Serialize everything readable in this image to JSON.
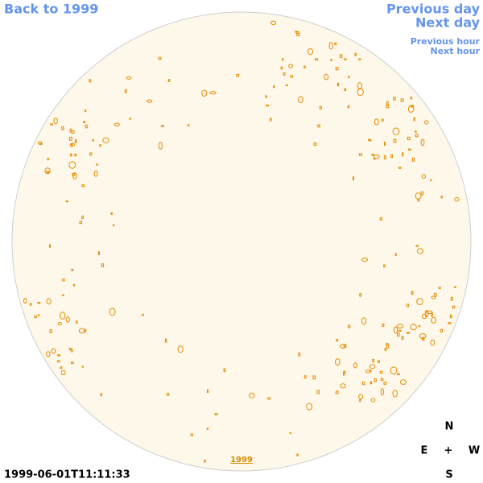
{
  "nav": {
    "back": "Back to 1999",
    "previous_day": "Previous day",
    "next_day": "Next day",
    "previous_hour": "Previous hour",
    "next_hour": "Next hour"
  },
  "disk_label": "1999",
  "timestamp": "1999-06-01T11:11:33",
  "compass": {
    "north": "N",
    "east": "E",
    "center": "+",
    "west": "W",
    "south": "S"
  }
}
